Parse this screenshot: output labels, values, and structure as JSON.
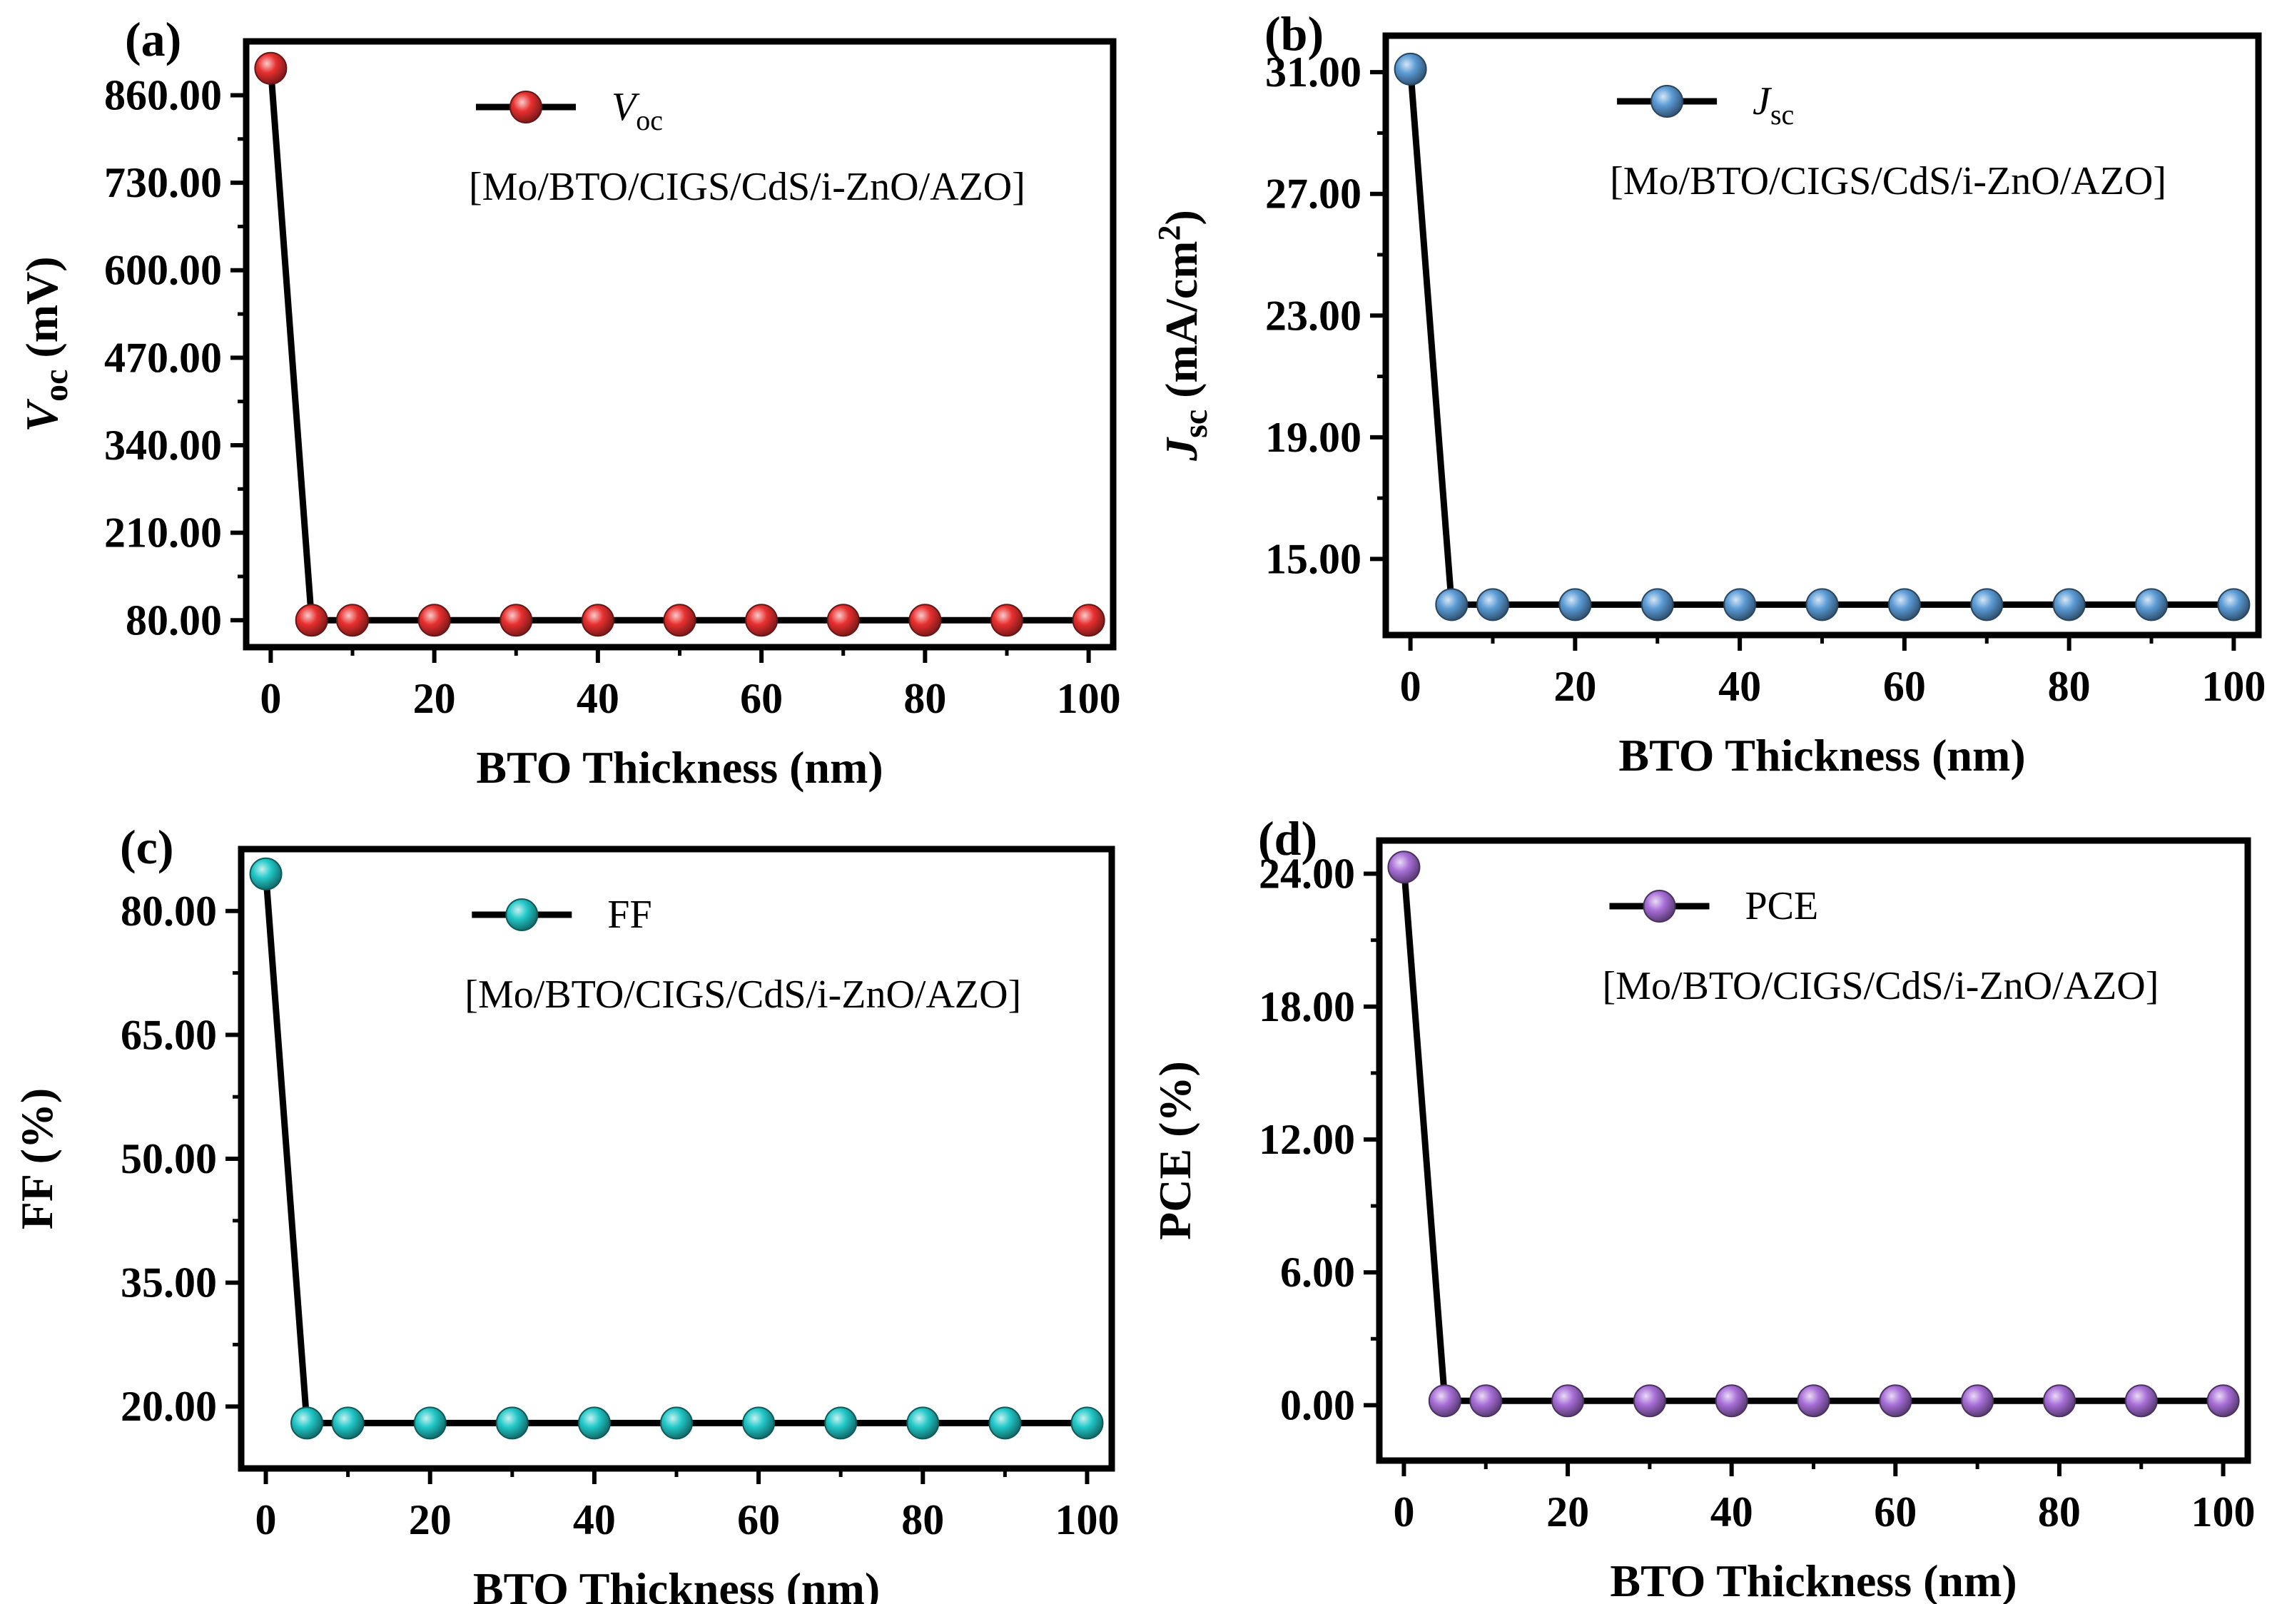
{
  "chart_data": [
    {
      "panel": "(a)",
      "type": "line",
      "xlabel": "BTO Thickness (nm)",
      "ylabel_main": "V",
      "ylabel_sub": "oc",
      "ylabel_tail": " (mV)",
      "legend_main": "V",
      "legend_sub": "oc",
      "legend_italic": true,
      "structure": "[Mo/BTO/CIGS/CdS/i-ZnO/AZO]",
      "color": "#e8302f",
      "xlim": [
        -3,
        103
      ],
      "ylim": [
        40,
        940
      ],
      "xticks": [
        0,
        20,
        40,
        60,
        80,
        100
      ],
      "yticks": [
        80,
        210,
        340,
        470,
        600,
        730,
        860
      ],
      "ytick_labels": [
        "80.00",
        "210.00",
        "340.00",
        "470.00",
        "600.00",
        "730.00",
        "860.00"
      ],
      "x": [
        0,
        5,
        10,
        20,
        30,
        40,
        50,
        60,
        70,
        80,
        90,
        100
      ],
      "y": [
        900,
        80,
        80,
        80,
        80,
        80,
        80,
        80,
        80,
        80,
        80,
        80
      ]
    },
    {
      "panel": "(b)",
      "type": "line",
      "xlabel": "BTO Thickness (nm)",
      "ylabel_main": "J",
      "ylabel_sub": "sc",
      "ylabel_tail": " (mA/cm",
      "ylabel_sup": "2",
      "ylabel_end": ")",
      "legend_main": "J",
      "legend_sub": "sc",
      "legend_italic": true,
      "structure": "[Mo/BTO/CIGS/CdS/i-ZnO/AZO]",
      "color": "#5b9bd5",
      "xlim": [
        -3,
        103
      ],
      "ylim": [
        12.5,
        32.2
      ],
      "xticks": [
        0,
        20,
        40,
        60,
        80,
        100
      ],
      "yticks": [
        15,
        19,
        23,
        27,
        31
      ],
      "ytick_labels": [
        "15.00",
        "19.00",
        "23.00",
        "27.00",
        "31.00"
      ],
      "x": [
        0,
        5,
        10,
        20,
        30,
        40,
        50,
        60,
        70,
        80,
        90,
        100
      ],
      "y": [
        31.1,
        13.5,
        13.5,
        13.5,
        13.5,
        13.5,
        13.5,
        13.5,
        13.5,
        13.5,
        13.5,
        13.5
      ]
    },
    {
      "panel": "(c)",
      "type": "line",
      "xlabel": "BTO Thickness (nm)",
      "ylabel_main": "FF (%)",
      "legend_main": "FF",
      "legend_italic": false,
      "structure": "[Mo/BTO/CIGS/CdS/i-ZnO/AZO]",
      "color": "#22c8c8",
      "xlim": [
        -3,
        103
      ],
      "ylim": [
        12.5,
        87.5
      ],
      "xticks": [
        0,
        20,
        40,
        60,
        80,
        100
      ],
      "yticks": [
        20,
        35,
        50,
        65,
        80
      ],
      "ytick_labels": [
        "20.00",
        "35.00",
        "50.00",
        "65.00",
        "80.00"
      ],
      "x": [
        0,
        5,
        10,
        20,
        30,
        40,
        50,
        60,
        70,
        80,
        90,
        100
      ],
      "y": [
        84.5,
        18,
        18,
        18,
        18,
        18,
        18,
        18,
        18,
        18,
        18,
        18
      ]
    },
    {
      "panel": "(d)",
      "type": "line",
      "xlabel": "BTO Thickness (nm)",
      "ylabel_main": "PCE (%)",
      "legend_main": "PCE",
      "legend_italic": false,
      "structure": "[Mo/BTO/CIGS/CdS/i-ZnO/AZO]",
      "color": "#a86fd8",
      "xlim": [
        -3,
        103
      ],
      "ylim": [
        -2.5,
        25.5
      ],
      "xticks": [
        0,
        20,
        40,
        60,
        80,
        100
      ],
      "yticks": [
        0,
        6,
        12,
        18,
        24
      ],
      "ytick_labels": [
        "0.00",
        "6.00",
        "12.00",
        "18.00",
        "24.00"
      ],
      "x": [
        0,
        5,
        10,
        20,
        30,
        40,
        50,
        60,
        70,
        80,
        90,
        100
      ],
      "y": [
        24.3,
        0.2,
        0.2,
        0.2,
        0.2,
        0.2,
        0.2,
        0.2,
        0.2,
        0.2,
        0.2,
        0.2
      ]
    }
  ]
}
